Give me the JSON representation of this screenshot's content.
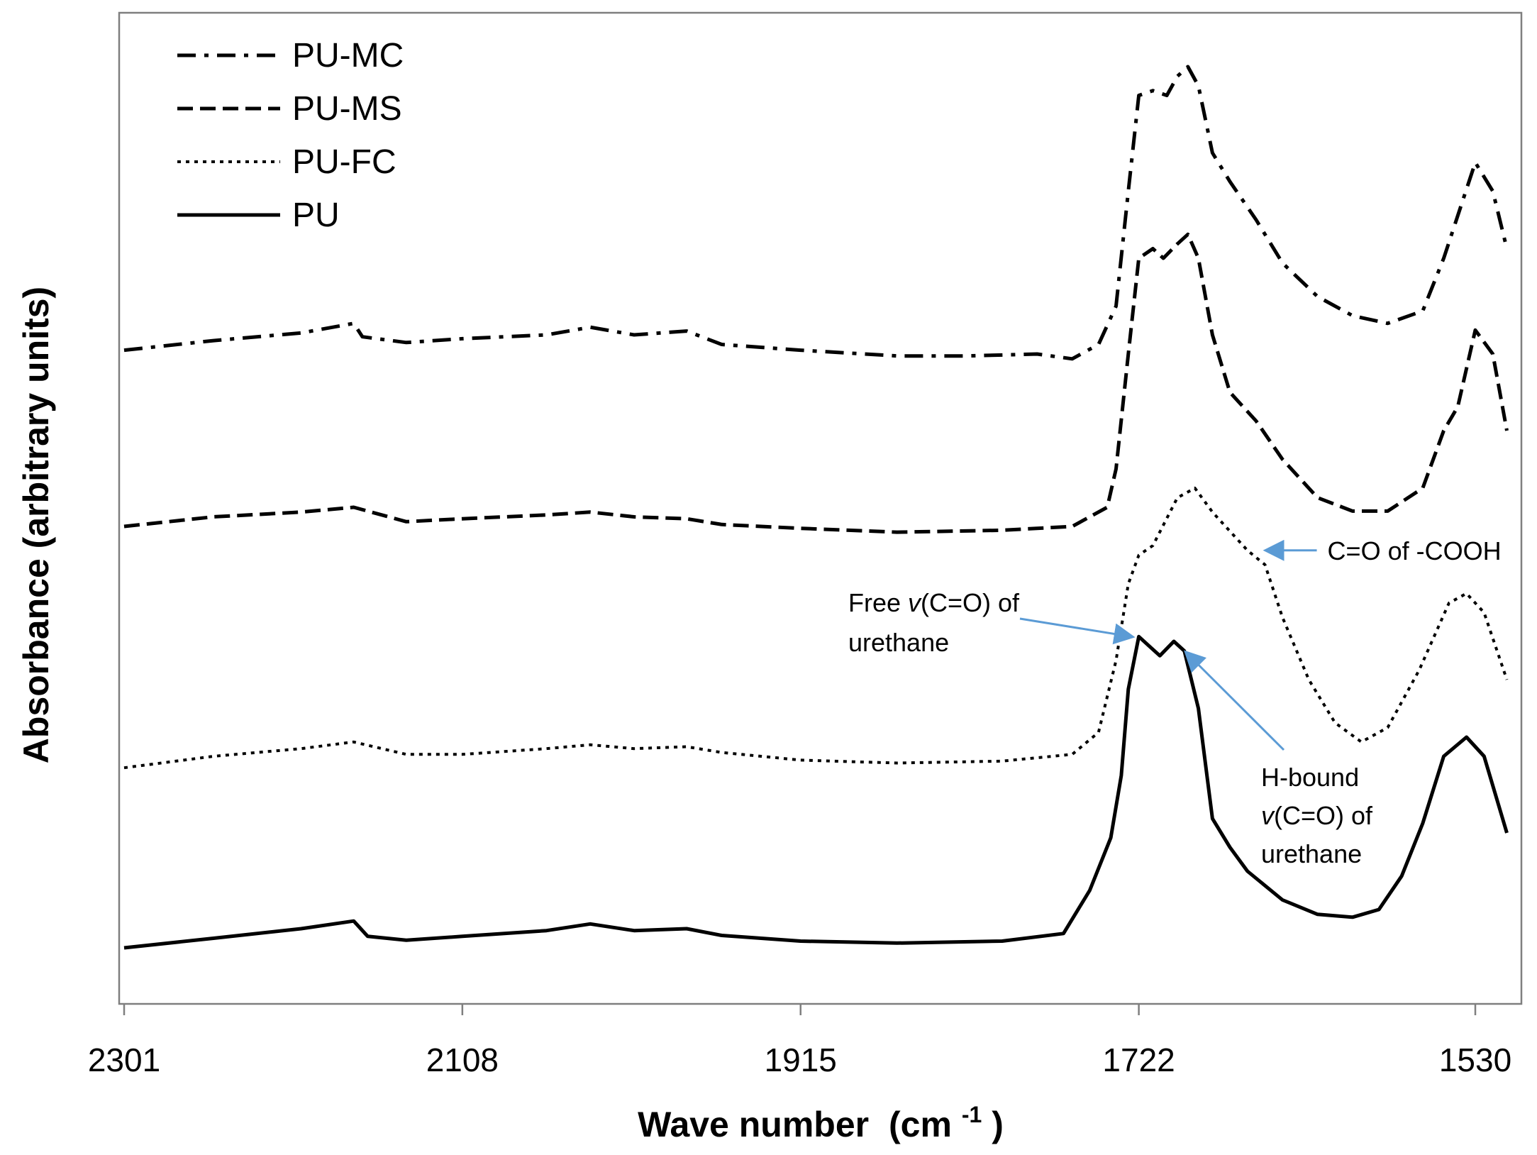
{
  "chart_data": {
    "type": "line",
    "title": "",
    "xlabel": "Wave number",
    "xlabel_unit_base": "(cm",
    "xlabel_unit_exp": "-1",
    "xlabel_unit_close": ")",
    "ylabel": "Absorbance (arbitrary units)",
    "xlim": [
      2301,
      1512
    ],
    "x_reversed": true,
    "ylim": [
      0,
      10
    ],
    "x_ticks": [
      "2301",
      "2108",
      "1915",
      "1722",
      "1530"
    ],
    "x_tick_values": [
      2301,
      2108,
      1915,
      1722,
      1530
    ],
    "legend_position": "top-left",
    "series": [
      {
        "name": "PU-MC",
        "style": "dashdot",
        "points": [
          [
            2301,
            6.64
          ],
          [
            2250,
            6.74
          ],
          [
            2200,
            6.82
          ],
          [
            2170,
            6.92
          ],
          [
            2165,
            6.78
          ],
          [
            2140,
            6.72
          ],
          [
            2108,
            6.76
          ],
          [
            2060,
            6.8
          ],
          [
            2035,
            6.88
          ],
          [
            2010,
            6.8
          ],
          [
            1980,
            6.84
          ],
          [
            1960,
            6.7
          ],
          [
            1915,
            6.64
          ],
          [
            1860,
            6.58
          ],
          [
            1820,
            6.58
          ],
          [
            1780,
            6.6
          ],
          [
            1760,
            6.55
          ],
          [
            1745,
            6.7
          ],
          [
            1735,
            7.1
          ],
          [
            1728,
            8.3
          ],
          [
            1722,
            9.3
          ],
          [
            1714,
            9.35
          ],
          [
            1706,
            9.3
          ],
          [
            1700,
            9.5
          ],
          [
            1694,
            9.6
          ],
          [
            1688,
            9.4
          ],
          [
            1680,
            8.7
          ],
          [
            1670,
            8.4
          ],
          [
            1655,
            8.0
          ],
          [
            1640,
            7.55
          ],
          [
            1620,
            7.2
          ],
          [
            1600,
            7.0
          ],
          [
            1580,
            6.92
          ],
          [
            1560,
            7.05
          ],
          [
            1548,
            7.6
          ],
          [
            1530,
            8.6
          ],
          [
            1520,
            8.3
          ],
          [
            1512,
            7.7
          ]
        ]
      },
      {
        "name": "PU-MS",
        "style": "dashed",
        "points": [
          [
            2301,
            4.8
          ],
          [
            2250,
            4.9
          ],
          [
            2200,
            4.95
          ],
          [
            2170,
            5.0
          ],
          [
            2140,
            4.85
          ],
          [
            2108,
            4.88
          ],
          [
            2060,
            4.92
          ],
          [
            2035,
            4.95
          ],
          [
            2010,
            4.9
          ],
          [
            1980,
            4.88
          ],
          [
            1960,
            4.82
          ],
          [
            1915,
            4.78
          ],
          [
            1860,
            4.74
          ],
          [
            1800,
            4.76
          ],
          [
            1760,
            4.8
          ],
          [
            1740,
            5.0
          ],
          [
            1735,
            5.4
          ],
          [
            1728,
            6.6
          ],
          [
            1722,
            7.6
          ],
          [
            1714,
            7.7
          ],
          [
            1708,
            7.6
          ],
          [
            1700,
            7.75
          ],
          [
            1694,
            7.85
          ],
          [
            1688,
            7.6
          ],
          [
            1680,
            6.8
          ],
          [
            1670,
            6.2
          ],
          [
            1655,
            5.9
          ],
          [
            1640,
            5.5
          ],
          [
            1620,
            5.1
          ],
          [
            1600,
            4.96
          ],
          [
            1580,
            4.96
          ],
          [
            1560,
            5.2
          ],
          [
            1548,
            5.8
          ],
          [
            1540,
            6.05
          ],
          [
            1530,
            6.85
          ],
          [
            1520,
            6.6
          ],
          [
            1512,
            5.8
          ]
        ]
      },
      {
        "name": "PU-FC",
        "style": "dotted",
        "points": [
          [
            2301,
            2.28
          ],
          [
            2250,
            2.4
          ],
          [
            2200,
            2.48
          ],
          [
            2170,
            2.55
          ],
          [
            2140,
            2.42
          ],
          [
            2108,
            2.42
          ],
          [
            2060,
            2.48
          ],
          [
            2035,
            2.52
          ],
          [
            2010,
            2.48
          ],
          [
            1980,
            2.5
          ],
          [
            1960,
            2.44
          ],
          [
            1915,
            2.36
          ],
          [
            1860,
            2.33
          ],
          [
            1800,
            2.35
          ],
          [
            1760,
            2.42
          ],
          [
            1745,
            2.65
          ],
          [
            1735,
            3.4
          ],
          [
            1728,
            4.2
          ],
          [
            1722,
            4.5
          ],
          [
            1714,
            4.6
          ],
          [
            1700,
            5.1
          ],
          [
            1690,
            5.2
          ],
          [
            1680,
            4.95
          ],
          [
            1670,
            4.75
          ],
          [
            1660,
            4.55
          ],
          [
            1650,
            4.4
          ],
          [
            1640,
            3.85
          ],
          [
            1625,
            3.2
          ],
          [
            1610,
            2.75
          ],
          [
            1595,
            2.55
          ],
          [
            1580,
            2.7
          ],
          [
            1562,
            3.3
          ],
          [
            1545,
            4.0
          ],
          [
            1535,
            4.1
          ],
          [
            1525,
            3.9
          ],
          [
            1512,
            3.2
          ]
        ]
      },
      {
        "name": "PU",
        "style": "solid",
        "points": [
          [
            2301,
            0.4
          ],
          [
            2250,
            0.5
          ],
          [
            2200,
            0.6
          ],
          [
            2170,
            0.68
          ],
          [
            2162,
            0.52
          ],
          [
            2140,
            0.48
          ],
          [
            2108,
            0.52
          ],
          [
            2060,
            0.58
          ],
          [
            2035,
            0.65
          ],
          [
            2010,
            0.58
          ],
          [
            1980,
            0.6
          ],
          [
            1960,
            0.53
          ],
          [
            1915,
            0.47
          ],
          [
            1860,
            0.45
          ],
          [
            1800,
            0.47
          ],
          [
            1765,
            0.55
          ],
          [
            1750,
            1.0
          ],
          [
            1738,
            1.55
          ],
          [
            1732,
            2.2
          ],
          [
            1728,
            3.1
          ],
          [
            1722,
            3.65
          ],
          [
            1716,
            3.55
          ],
          [
            1710,
            3.45
          ],
          [
            1702,
            3.6
          ],
          [
            1696,
            3.5
          ],
          [
            1688,
            2.9
          ],
          [
            1680,
            1.75
          ],
          [
            1670,
            1.45
          ],
          [
            1660,
            1.2
          ],
          [
            1640,
            0.9
          ],
          [
            1620,
            0.75
          ],
          [
            1600,
            0.72
          ],
          [
            1585,
            0.8
          ],
          [
            1572,
            1.15
          ],
          [
            1560,
            1.7
          ],
          [
            1548,
            2.4
          ],
          [
            1535,
            2.6
          ],
          [
            1525,
            2.4
          ],
          [
            1512,
            1.6
          ]
        ]
      }
    ],
    "annotations": [
      {
        "label": "C=O of -COOH",
        "target_x": 1652,
        "target_y": 4.55
      },
      {
        "label_lines": [
          "Free ",
          "v",
          "(C=O) of",
          "urethane"
        ],
        "target_x": 1724,
        "target_y": 3.62
      },
      {
        "label_lines": [
          "H-bound",
          "v",
          "(C=O) of",
          "urethane"
        ],
        "target_x": 1697,
        "target_y": 3.55
      }
    ]
  }
}
